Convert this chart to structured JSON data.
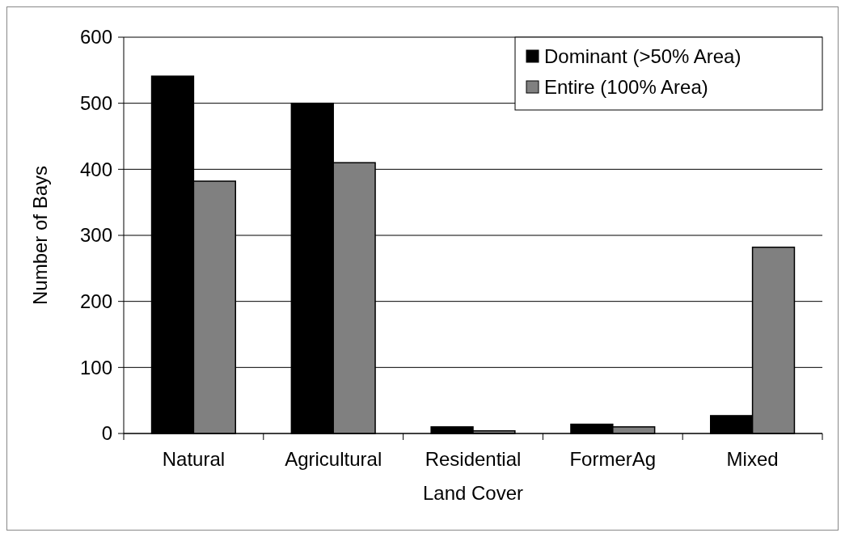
{
  "chart_data": {
    "type": "bar",
    "xlabel": "Land Cover",
    "ylabel": "Number of Bays",
    "categories": [
      "Natural",
      "Agricultural",
      "Residential",
      "FormerAg",
      "Mixed"
    ],
    "series": [
      {
        "name": "Dominant (>50% Area)",
        "color": "#000000",
        "values": [
          541,
          500,
          10,
          14,
          27
        ]
      },
      {
        "name": "Entire (100% Area)",
        "color": "#808080",
        "values": [
          382,
          410,
          4,
          10,
          282
        ]
      }
    ],
    "ylim": [
      0,
      600
    ],
    "yticks": [
      0,
      100,
      200,
      300,
      400,
      500,
      600
    ],
    "grid": "y",
    "legend": "top right"
  }
}
